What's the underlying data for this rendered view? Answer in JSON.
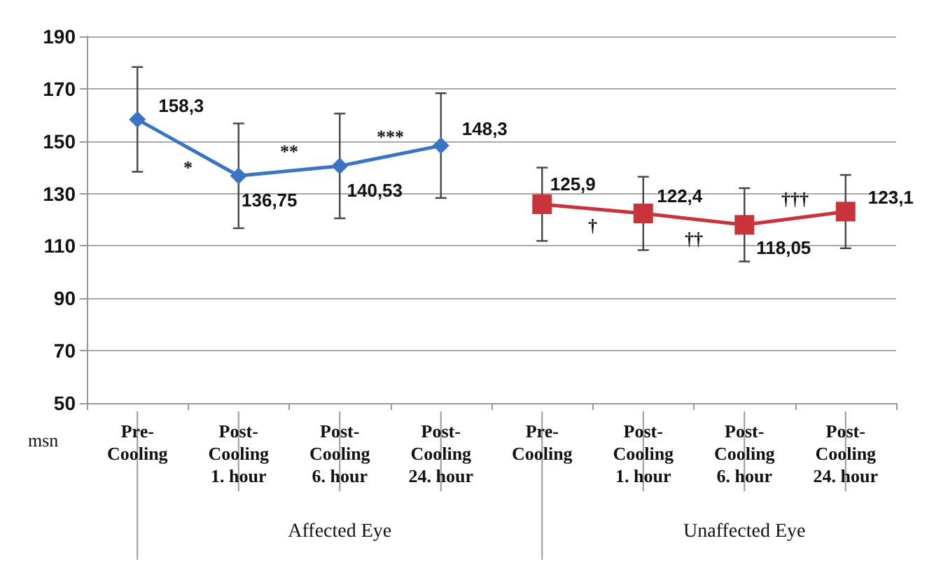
{
  "chart_data": {
    "type": "line",
    "ylabel": "msn",
    "categories": [
      "Pre-Cooling",
      "Post-Cooling 1. hour",
      "Post-Cooling 6. hour",
      "Post-Cooling 24. hour",
      "Pre-Cooling",
      "Post-Cooling 1. hour",
      "Post-Cooling 6. hour",
      "Post-Cooling 24. hour"
    ],
    "series": [
      {
        "color": "#3a75c4",
        "marker": "diamond",
        "values": [
          158.3,
          136.75,
          140.53,
          148.3,
          null,
          null,
          null,
          null
        ],
        "errors": [
          20,
          20,
          20,
          20,
          null,
          null,
          null,
          null
        ],
        "value_labels": [
          "158,3",
          "136,75",
          "140,53",
          "148,3",
          null,
          null,
          null,
          null
        ]
      },
      {
        "color": "#c8343a",
        "marker": "square",
        "values": [
          null,
          null,
          null,
          null,
          125.9,
          122.4,
          118.05,
          123.1
        ],
        "errors": [
          null,
          null,
          null,
          null,
          14,
          14,
          14,
          14
        ],
        "value_labels": [
          null,
          null,
          null,
          null,
          "125,9",
          "122,4",
          "118,05",
          "123,1"
        ]
      }
    ],
    "ylim": [
      50,
      190
    ],
    "yticks": [
      50,
      70,
      90,
      110,
      130,
      150,
      170,
      190
    ],
    "grid": "y",
    "line_style": "solid",
    "annotations": [
      "*",
      "**",
      "***",
      "†",
      "††",
      "†††",
      "Affected Eye",
      "Unaffected Eye"
    ]
  }
}
